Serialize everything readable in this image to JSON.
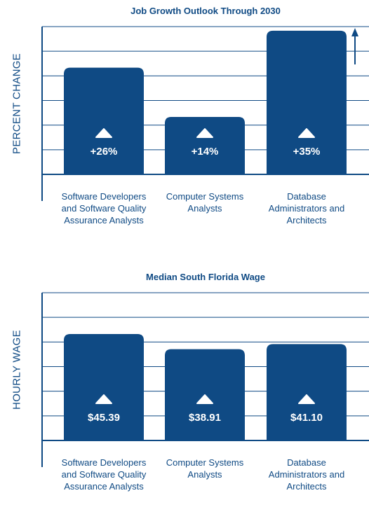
{
  "chart_data": [
    {
      "type": "bar",
      "title": "Job Growth Outlook Through 2030",
      "ylabel": "PERCENT CHANGE",
      "xlabel": "",
      "categories": [
        "Software Developers and Software Quality Assurance Analysts",
        "Computer Systems Analysts",
        "Database Administrators and Architects"
      ],
      "values": [
        26,
        14,
        35
      ],
      "value_labels": [
        "+26%",
        "+14%",
        "+35%"
      ],
      "ylim": [
        0,
        36
      ],
      "grid": true,
      "marker": "up-triangle-icon",
      "axis_arrow": "up-arrow-icon"
    },
    {
      "type": "bar",
      "title": "Median South Florida Wage",
      "ylabel": "HOURLY WAGE",
      "xlabel": "",
      "categories": [
        "Software Developers and Software Quality Assurance Analysts",
        "Computer Systems Analysts",
        "Database Administrators and Architects"
      ],
      "values": [
        45.39,
        38.91,
        41.1
      ],
      "value_labels": [
        "$45.39",
        "$38.91",
        "$41.10"
      ],
      "ylim": [
        0,
        63
      ],
      "grid": true,
      "marker": "up-triangle-icon"
    }
  ],
  "colors": {
    "bar": "#0f4a84",
    "text": "#0f4a84",
    "grid": "#0f4a84",
    "marker": "#ffffff"
  }
}
